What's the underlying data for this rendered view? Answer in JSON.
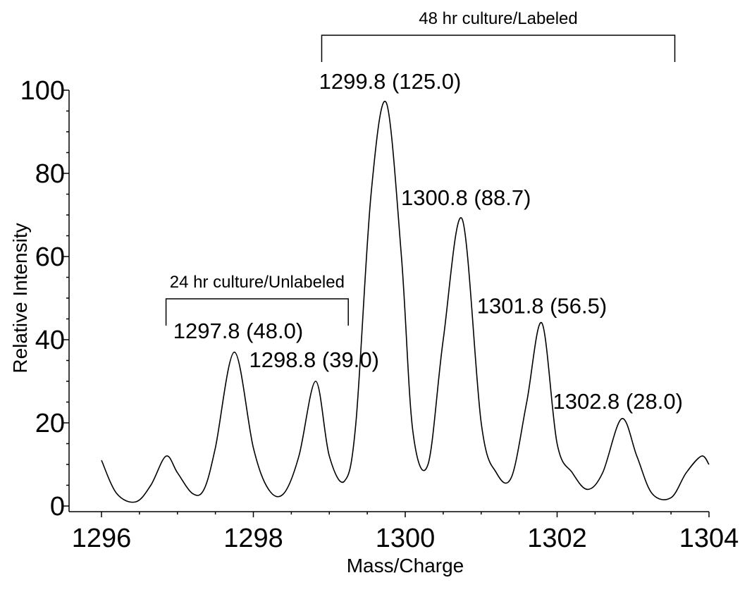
{
  "chart_data": {
    "type": "line",
    "title": "",
    "xlabel": "Mass/Charge",
    "ylabel": "Relative Intensity",
    "xlim": [
      1296,
      1304
    ],
    "ylim": [
      0,
      100
    ],
    "xticks": [
      1296,
      1298,
      1300,
      1302,
      1304
    ],
    "yticks": [
      0,
      20,
      40,
      60,
      80,
      100
    ],
    "grid": false,
    "legend": "none",
    "series": [
      {
        "x": [
          1296.0,
          1296.2,
          1296.45,
          1296.65,
          1296.85,
          1297.0,
          1297.2,
          1297.35,
          1297.5,
          1297.75,
          1298.0,
          1298.2,
          1298.4,
          1298.6,
          1298.82,
          1299.0,
          1299.2,
          1299.35,
          1299.55,
          1299.75,
          1299.95,
          1300.1,
          1300.3,
          1300.5,
          1300.75,
          1301.0,
          1301.2,
          1301.4,
          1301.6,
          1301.8,
          1302.0,
          1302.2,
          1302.4,
          1302.6,
          1302.85,
          1303.05,
          1303.25,
          1303.5,
          1303.7,
          1303.9,
          1304.0
        ],
        "y": [
          11,
          3,
          1,
          5,
          12,
          8,
          3,
          4,
          14,
          37,
          14,
          4,
          3,
          12,
          30,
          12,
          6,
          20,
          75,
          97,
          60,
          18,
          10,
          40,
          69,
          20,
          8,
          7,
          25,
          44,
          15,
          8,
          4,
          8,
          21,
          12,
          3,
          2,
          8,
          12,
          10
        ]
      }
    ],
    "annotations": [
      {
        "text": "1297.8 (48.0)",
        "x": 1297.8,
        "y": 38
      },
      {
        "text": "1298.8 (39.0)",
        "x": 1298.8,
        "y": 31
      },
      {
        "text": "1299.8 (125.0)",
        "x": 1299.8,
        "y": 98
      },
      {
        "text": "1300.8 (88.7)",
        "x": 1300.8,
        "y": 70
      },
      {
        "text": "1301.8 (56.5)",
        "x": 1301.8,
        "y": 44
      },
      {
        "text": "1302.8 (28.0)",
        "x": 1302.8,
        "y": 21
      }
    ],
    "brackets": [
      {
        "text": "24 hr culture/Unlabeled",
        "x_start": 1296.85,
        "x_end": 1299.25
      },
      {
        "text": "48 hr culture/Labeled",
        "x_start": 1298.9,
        "x_end": 1303.55
      }
    ]
  }
}
